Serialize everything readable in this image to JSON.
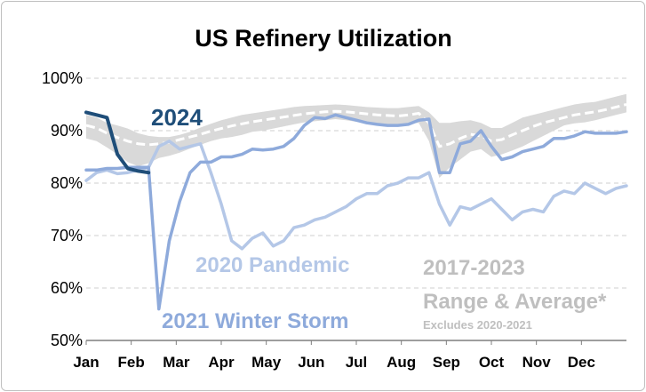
{
  "chart_data": {
    "type": "line",
    "title": "US Refinery Utilization",
    "xlabel": "",
    "ylabel": "",
    "x_categories": [
      "Jan",
      "Feb",
      "Mar",
      "Apr",
      "May",
      "Jun",
      "Jul",
      "Aug",
      "Sep",
      "Oct",
      "Nov",
      "Dec"
    ],
    "y_ticks": [
      "50%",
      "60%",
      "70%",
      "80%",
      "90%",
      "100%"
    ],
    "ylim": [
      50,
      100
    ],
    "x_unit": "week of year",
    "xlim": [
      1,
      53
    ],
    "grid": "horizontal dashed",
    "range_band": {
      "label_line1": "2017-2023",
      "label_line2": "Range & Average*",
      "note": "Excludes 2020-2021",
      "color": "#d9d9d9",
      "weeks": [
        1,
        2,
        3,
        4,
        5,
        6,
        7,
        8,
        9,
        10,
        11,
        12,
        13,
        14,
        15,
        16,
        17,
        18,
        19,
        20,
        21,
        22,
        23,
        24,
        25,
        26,
        27,
        28,
        29,
        30,
        31,
        32,
        33,
        34,
        35,
        36,
        37,
        38,
        39,
        40,
        41,
        42,
        43,
        44,
        45,
        46,
        47,
        48,
        49,
        50,
        51,
        52,
        53
      ],
      "low": [
        88.5,
        88.0,
        86.8,
        85.5,
        84.0,
        83.2,
        83.8,
        84.8,
        85.2,
        85.8,
        86.6,
        87.3,
        88.0,
        88.5,
        88.8,
        89.2,
        89.8,
        90.0,
        90.4,
        90.8,
        91.2,
        91.6,
        91.8,
        92.0,
        92.2,
        92.0,
        91.7,
        91.5,
        91.3,
        91.1,
        91.0,
        91.3,
        91.5,
        88.0,
        81.0,
        83.0,
        84.5,
        86.0,
        86.5,
        85.0,
        85.5,
        86.2,
        87.0,
        88.0,
        89.0,
        90.0,
        91.0,
        91.4,
        91.6,
        92.0,
        92.5,
        93.0,
        93.5
      ],
      "high": [
        93.0,
        92.5,
        91.5,
        91.0,
        90.4,
        89.5,
        89.0,
        88.8,
        88.8,
        89.2,
        89.8,
        90.6,
        91.3,
        92.0,
        92.5,
        93.0,
        93.3,
        93.6,
        93.9,
        94.2,
        94.5,
        94.7,
        94.8,
        94.9,
        95.0,
        94.9,
        94.7,
        94.5,
        94.4,
        94.3,
        94.3,
        94.5,
        94.7,
        93.5,
        91.5,
        91.5,
        91.8,
        92.0,
        91.5,
        90.5,
        90.5,
        91.5,
        92.5,
        93.0,
        93.5,
        94.0,
        94.5,
        95.0,
        95.3,
        95.5,
        96.0,
        96.5,
        97.0
      ],
      "avg": [
        91.0,
        90.5,
        89.5,
        88.7,
        88.0,
        87.5,
        87.3,
        87.5,
        87.8,
        88.3,
        88.8,
        89.3,
        89.9,
        90.4,
        90.9,
        91.3,
        91.7,
        92.0,
        92.3,
        92.6,
        92.9,
        93.2,
        93.4,
        93.6,
        93.7,
        93.6,
        93.4,
        93.2,
        93.0,
        92.9,
        92.8,
        93.0,
        93.3,
        91.5,
        87.0,
        87.5,
        88.5,
        89.3,
        89.0,
        88.0,
        88.3,
        89.2,
        90.0,
        90.8,
        91.5,
        92.0,
        92.5,
        93.0,
        93.3,
        93.6,
        94.0,
        94.5,
        95.0
      ]
    },
    "series": [
      {
        "name": "2024",
        "color": "#1f4e79",
        "x": [
          1,
          2,
          3,
          4,
          5,
          6,
          7
        ],
        "y": [
          93.5,
          93.0,
          92.5,
          85.5,
          82.8,
          82.3,
          82.0
        ]
      },
      {
        "name": "2020 Pandemic",
        "color": "#b4c7e7",
        "x": [
          1,
          2,
          3,
          4,
          5,
          6,
          7,
          8,
          9,
          10,
          11,
          12,
          13,
          14,
          15,
          16,
          17,
          18,
          19,
          20,
          21,
          22,
          23,
          24,
          25,
          26,
          27,
          28,
          29,
          30,
          31,
          32,
          33,
          34,
          35,
          36,
          37,
          38,
          39,
          40,
          41,
          42,
          43,
          44,
          45,
          46,
          47,
          48,
          49,
          50,
          51,
          52,
          53
        ],
        "y": [
          80.5,
          82.0,
          82.5,
          81.8,
          82.0,
          82.5,
          83.0,
          87.0,
          88.0,
          86.5,
          87.0,
          87.5,
          82.0,
          76.0,
          69.0,
          67.5,
          69.5,
          70.5,
          68.0,
          69.0,
          71.5,
          72.0,
          73.0,
          73.5,
          74.5,
          75.5,
          77.0,
          78.0,
          78.0,
          79.5,
          80.0,
          81.0,
          81.0,
          82.0,
          76.0,
          72.0,
          75.5,
          75.0,
          76.0,
          77.0,
          75.0,
          73.0,
          74.5,
          75.0,
          74.5,
          77.5,
          78.5,
          78.0,
          80.0,
          79.0,
          78.0,
          79.0,
          79.5
        ]
      },
      {
        "name": "2021 Winter Storm",
        "color": "#8eaadb",
        "x": [
          1,
          2,
          3,
          4,
          5,
          6,
          7,
          8,
          9,
          10,
          11,
          12,
          13,
          14,
          15,
          16,
          17,
          18,
          19,
          20,
          21,
          22,
          23,
          24,
          25,
          26,
          27,
          28,
          29,
          30,
          31,
          32,
          33,
          34,
          35,
          36,
          37,
          38,
          39,
          40,
          41,
          42,
          43,
          44,
          45,
          46,
          47,
          48,
          49,
          50,
          51,
          52,
          53
        ],
        "y": [
          82.5,
          82.5,
          82.8,
          82.8,
          83.0,
          83.0,
          83.0,
          56.0,
          69.0,
          76.5,
          82.0,
          84.0,
          84.0,
          85.0,
          85.0,
          85.5,
          86.5,
          86.3,
          86.5,
          87.0,
          88.5,
          91.0,
          92.5,
          92.3,
          93.0,
          92.5,
          92.0,
          91.5,
          91.2,
          91.0,
          91.0,
          91.2,
          92.0,
          92.2,
          82.0,
          82.0,
          87.5,
          88.0,
          90.0,
          87.0,
          84.5,
          85.0,
          86.0,
          86.5,
          87.0,
          88.5,
          88.5,
          89.0,
          89.8,
          89.5,
          89.5,
          89.5,
          89.8
        ]
      }
    ]
  }
}
